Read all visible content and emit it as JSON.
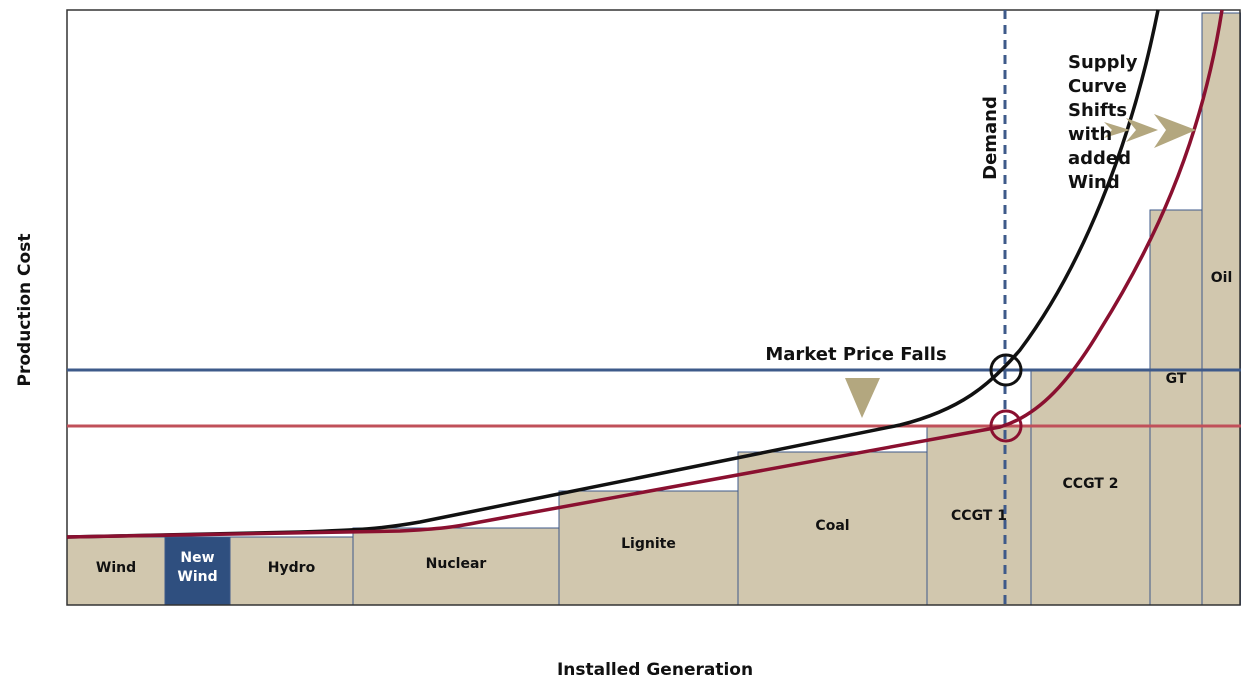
{
  "axes": {
    "y_label": "Production Cost",
    "x_label": "Installed Generation"
  },
  "blocks": [
    {
      "label": [
        "Wind"
      ]
    },
    {
      "label": [
        "New",
        "Wind"
      ]
    },
    {
      "label": [
        "Hydro"
      ]
    },
    {
      "label": [
        "Nuclear"
      ]
    },
    {
      "label": [
        "Lignite"
      ]
    },
    {
      "label": [
        "Coal"
      ]
    },
    {
      "label": [
        "CCGT 1"
      ]
    },
    {
      "label": [
        "CCGT 2"
      ]
    },
    {
      "label": [
        "GT"
      ]
    },
    {
      "label": [
        "Oil"
      ]
    }
  ],
  "annotations": {
    "demand": "Demand",
    "market_price": "Market Price Falls",
    "supply_shift": [
      "Supply",
      "Curve",
      "Shifts",
      "with",
      "added",
      "Wind"
    ]
  }
}
